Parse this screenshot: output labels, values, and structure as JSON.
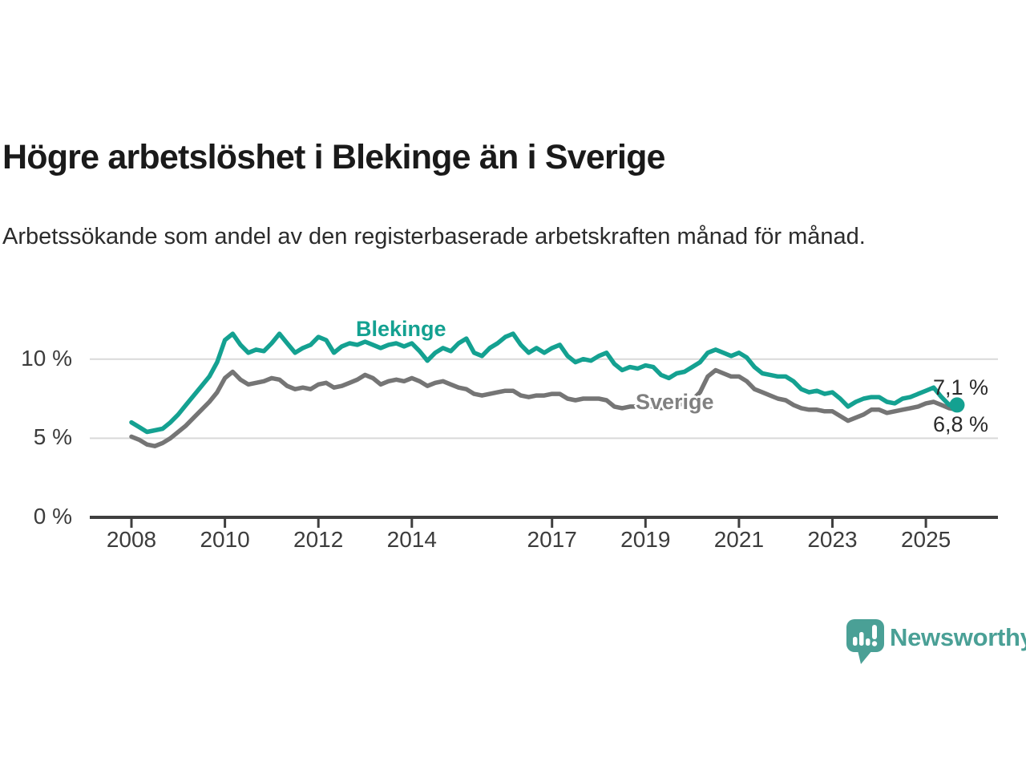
{
  "page": {
    "title": "Högre arbetslöshet i Blekinge än i Sverige",
    "subtitle": "Arbetssökande som andel av den registerbaserade arbetskraften månad för månad."
  },
  "branding": {
    "logo_text": "Newsworthy",
    "logo_color": "#4aa096",
    "logo_icon": "bar-chart-speech-bubble-icon"
  },
  "chart_data": {
    "type": "line",
    "title": "Högre arbetslöshet i Blekinge än i Sverige",
    "subtitle": "Arbetssökande som andel av den registerbaserade arbetskraften månad för månad.",
    "unit": "%",
    "grid": "horizontal",
    "legend_position": "inline-labels",
    "x_axis": {
      "tick_years": [
        2008,
        2010,
        2012,
        2014,
        2017,
        2019,
        2021,
        2023,
        2025
      ],
      "tick_labels": [
        "2008",
        "2010",
        "2012",
        "2014",
        "2017",
        "2019",
        "2021",
        "2023",
        "2025"
      ]
    },
    "y_axis": {
      "ticks": [
        0,
        5,
        10
      ],
      "tick_labels": [
        "0 %",
        "5 %",
        "10 %"
      ],
      "range": [
        0,
        12.5
      ]
    },
    "x_start": 2008.0,
    "x_step_years": 0.16667,
    "x_end": 2025.67,
    "series": [
      {
        "name": "Sverige",
        "color": "#757575",
        "label_color": "#808080",
        "end_label": "6,8 %",
        "end_dot": false,
        "values": [
          5.1,
          4.9,
          4.6,
          4.5,
          4.7,
          5.0,
          5.4,
          5.8,
          6.3,
          6.8,
          7.3,
          7.9,
          8.8,
          9.2,
          8.7,
          8.4,
          8.5,
          8.6,
          8.8,
          8.7,
          8.3,
          8.1,
          8.2,
          8.1,
          8.4,
          8.5,
          8.2,
          8.3,
          8.5,
          8.7,
          9.0,
          8.8,
          8.4,
          8.6,
          8.7,
          8.6,
          8.8,
          8.6,
          8.3,
          8.5,
          8.6,
          8.4,
          8.2,
          8.1,
          7.8,
          7.7,
          7.8,
          7.9,
          8.0,
          8.0,
          7.7,
          7.6,
          7.7,
          7.7,
          7.8,
          7.8,
          7.5,
          7.4,
          7.5,
          7.5,
          7.5,
          7.4,
          7.0,
          6.9,
          7.0,
          7.0,
          7.1,
          7.0,
          6.9,
          7.0,
          7.1,
          7.2,
          7.4,
          7.9,
          8.9,
          9.3,
          9.1,
          8.9,
          8.9,
          8.6,
          8.1,
          7.9,
          7.7,
          7.5,
          7.4,
          7.1,
          6.9,
          6.8,
          6.8,
          6.7,
          6.7,
          6.4,
          6.1,
          6.3,
          6.5,
          6.8,
          6.8,
          6.6,
          6.7,
          6.8,
          6.9,
          7.0,
          7.2,
          7.3,
          7.1,
          6.9,
          6.8
        ]
      },
      {
        "name": "Blekinge",
        "color": "#14a191",
        "label_color": "#14a191",
        "end_label": "7,1 %",
        "end_dot": true,
        "values": [
          6.0,
          5.7,
          5.4,
          5.5,
          5.6,
          6.0,
          6.5,
          7.1,
          7.7,
          8.3,
          8.9,
          9.8,
          11.2,
          11.6,
          10.9,
          10.4,
          10.6,
          10.5,
          11.0,
          11.6,
          11.0,
          10.4,
          10.7,
          10.9,
          11.4,
          11.2,
          10.4,
          10.8,
          11.0,
          10.9,
          11.1,
          10.9,
          10.7,
          10.9,
          11.0,
          10.8,
          11.0,
          10.5,
          9.9,
          10.4,
          10.7,
          10.5,
          11.0,
          11.3,
          10.4,
          10.2,
          10.7,
          11.0,
          11.4,
          11.6,
          10.9,
          10.4,
          10.7,
          10.4,
          10.7,
          10.9,
          10.2,
          9.8,
          10.0,
          9.9,
          10.2,
          10.4,
          9.7,
          9.3,
          9.5,
          9.4,
          9.6,
          9.5,
          9.0,
          8.8,
          9.1,
          9.2,
          9.5,
          9.8,
          10.4,
          10.6,
          10.4,
          10.2,
          10.4,
          10.1,
          9.5,
          9.1,
          9.0,
          8.9,
          8.9,
          8.6,
          8.1,
          7.9,
          8.0,
          7.8,
          7.9,
          7.5,
          7.0,
          7.3,
          7.5,
          7.6,
          7.6,
          7.3,
          7.2,
          7.5,
          7.6,
          7.8,
          8.0,
          8.2,
          7.6,
          7.1,
          7.1
        ]
      }
    ],
    "annotations": {
      "last_value_blekinge": "7,1 %",
      "last_value_sverige": "6,8 %"
    }
  },
  "layout_colors": {
    "gridline": "#d9d9d9",
    "axis": "#3f3f3f"
  }
}
